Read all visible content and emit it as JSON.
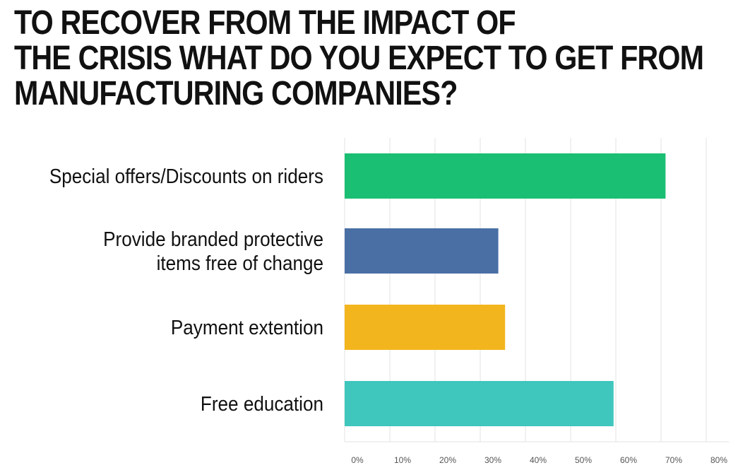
{
  "chart_data": {
    "type": "bar",
    "orientation": "horizontal",
    "title_lines": [
      "TO RECOVER FROM THE IMPACT OF",
      "THE CRISIS WHAT DO YOU EXPECT TO GET FROM",
      "MANUFACTURING COMPANIES?"
    ],
    "categories": [
      [
        "Special offers/Discounts on riders"
      ],
      [
        "Provide branded protective",
        "items free of change"
      ],
      [
        "Payment extention"
      ],
      [
        "Free education"
      ]
    ],
    "values": [
      71,
      34,
      35.5,
      59.5
    ],
    "colors": [
      "#1bbf73",
      "#4a6fa5",
      "#f2b51d",
      "#3fc6bd"
    ],
    "xlim": [
      0,
      85
    ],
    "x_ticks": [
      0,
      10,
      20,
      30,
      40,
      50,
      60,
      70,
      80
    ],
    "x_tick_labels": [
      "0%",
      "10%",
      "20%",
      "30%",
      "40%",
      "50%",
      "60%",
      "70%",
      "80%"
    ],
    "grid": "vertical",
    "value_format": "percent"
  }
}
